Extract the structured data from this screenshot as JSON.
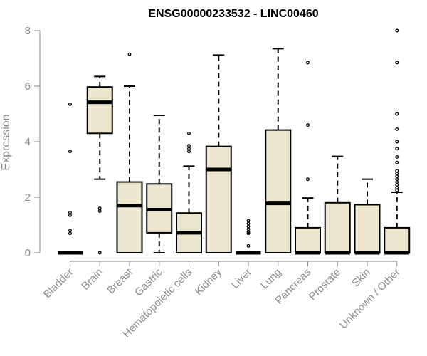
{
  "chart_data": {
    "type": "boxplot",
    "title": "ENSG00000233532 - LINC00460",
    "xlabel": "",
    "ylabel": "Expression",
    "ylim": [
      0,
      8
    ],
    "yticks": [
      0,
      2,
      4,
      6,
      8
    ],
    "grid": false,
    "box_fill": "#ece6cf",
    "categories": [
      "Bladder",
      "Brain",
      "Breast",
      "Gastric",
      "Hematopoietic cells",
      "Kidney",
      "Liver",
      "Lung",
      "Pancreas",
      "Prostate",
      "Skin",
      "Unknown / Other"
    ],
    "boxes": [
      {
        "q1": 0,
        "median": 0,
        "q3": 0,
        "whisker_low": 0,
        "whisker_high": 0,
        "outliers": [
          5.35,
          3.65,
          1.45,
          1.35,
          0.8,
          0.7
        ]
      },
      {
        "q1": 4.3,
        "median": 5.42,
        "q3": 5.97,
        "whisker_low": 2.65,
        "whisker_high": 6.35,
        "outliers": [
          1.6,
          1.5,
          0
        ]
      },
      {
        "q1": 0,
        "median": 1.7,
        "q3": 2.55,
        "whisker_low": 0,
        "whisker_high": 6.0,
        "outliers": [
          7.15
        ]
      },
      {
        "q1": 0.72,
        "median": 1.55,
        "q3": 2.48,
        "whisker_low": 0,
        "whisker_high": 4.95,
        "outliers": []
      },
      {
        "q1": 0,
        "median": 0.72,
        "q3": 1.43,
        "whisker_low": 0,
        "whisker_high": 3.12,
        "outliers": [
          4.3,
          3.85,
          3.75,
          3.65
        ]
      },
      {
        "q1": 0,
        "median": 3.0,
        "q3": 3.83,
        "whisker_low": 0,
        "whisker_high": 7.12,
        "outliers": []
      },
      {
        "q1": 0,
        "median": 0,
        "q3": 0,
        "whisker_low": 0,
        "whisker_high": 0,
        "outliers": [
          1.15,
          1.05,
          0.95,
          0.85,
          0.75,
          0.7,
          0.25
        ]
      },
      {
        "q1": 0,
        "median": 1.78,
        "q3": 4.42,
        "whisker_low": 0,
        "whisker_high": 7.35,
        "outliers": []
      },
      {
        "q1": 0,
        "median": 0,
        "q3": 0.9,
        "whisker_low": 0,
        "whisker_high": 1.97,
        "outliers": [
          6.85,
          4.6,
          2.65
        ]
      },
      {
        "q1": 0,
        "median": 0,
        "q3": 1.8,
        "whisker_low": 0,
        "whisker_high": 3.47,
        "outliers": []
      },
      {
        "q1": 0,
        "median": 0,
        "q3": 1.73,
        "whisker_low": 0,
        "whisker_high": 2.65,
        "outliers": []
      },
      {
        "q1": 0,
        "median": 0,
        "q3": 0.9,
        "whisker_low": 0,
        "whisker_high": 2.18,
        "outliers": [
          8.0,
          6.85,
          5.0,
          4.45,
          4.0,
          3.75,
          3.45,
          3.25,
          2.95,
          2.85,
          2.75,
          2.65,
          2.55,
          2.45,
          2.35,
          2.25
        ]
      }
    ]
  }
}
